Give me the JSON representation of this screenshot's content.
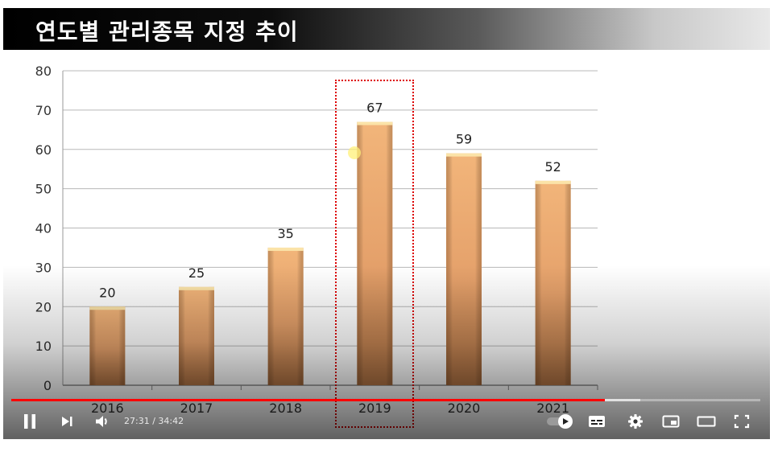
{
  "title": "연도별 관리종목 지정 추이",
  "chart_data": {
    "type": "bar",
    "title": "연도별 관리종목 지정 추이",
    "categories": [
      "2016",
      "2017",
      "2018",
      "2019",
      "2020",
      "2021"
    ],
    "values": [
      20,
      25,
      35,
      67,
      59,
      52
    ],
    "ylim": [
      0,
      80
    ],
    "yticks": [
      0,
      10,
      20,
      30,
      40,
      50,
      60,
      70,
      80
    ],
    "xlabel": "",
    "ylabel": "",
    "grid": true,
    "data_labels": true,
    "bar_color": "#e8a06a",
    "highlighted_category": "2019",
    "highlight_color": "#dd0000"
  },
  "player": {
    "current_time": "27:31",
    "duration": "34:42",
    "time_display": "27:31 / 34:42",
    "progress_fraction": 0.793,
    "buffer_fraction": 0.84,
    "progress_color": "#ff0000",
    "controls": [
      {
        "name": "pause-icon"
      },
      {
        "name": "next-icon"
      },
      {
        "name": "volume-icon"
      },
      {
        "name": "autoplay-toggle-icon"
      },
      {
        "name": "subtitles-icon"
      },
      {
        "name": "settings-gear-icon"
      },
      {
        "name": "miniplayer-icon"
      },
      {
        "name": "theater-mode-icon"
      },
      {
        "name": "fullscreen-icon"
      }
    ]
  }
}
